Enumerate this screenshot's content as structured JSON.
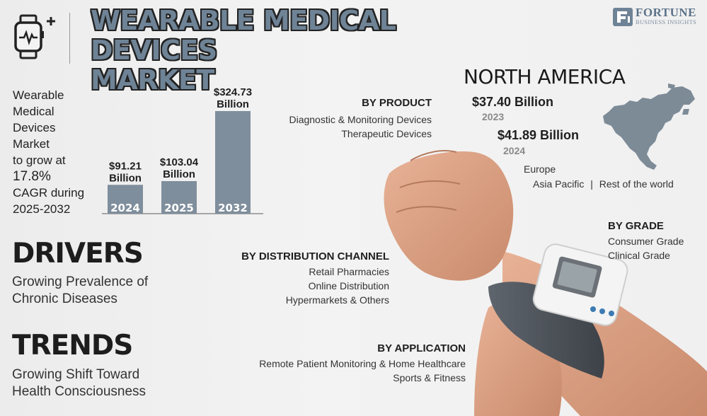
{
  "header": {
    "title_line1": "WEARABLE MEDICAL DEVICES",
    "title_line2": "MARKET",
    "brand_name": "FORTUNE",
    "brand_sub": "BUSINESS INSIGHTS",
    "logo_icon": "smartwatch-plus-icon"
  },
  "intro": {
    "l1": "Wearable",
    "l2": "Medical",
    "l3": "Devices",
    "l4": "Market",
    "l5": "to grow at",
    "cagr": "17.8%",
    "l7": "CAGR during",
    "period": "2025-2032"
  },
  "chart_data": {
    "type": "bar",
    "categories": [
      "2024",
      "2025",
      "2032"
    ],
    "values": [
      91.21,
      103.04,
      324.73
    ],
    "value_labels": [
      [
        "$91.21",
        "Billion"
      ],
      [
        "$103.04",
        "Billion"
      ],
      [
        "$324.73",
        "Billion"
      ]
    ],
    "bar_color": "#7f8e9c",
    "ylim": [
      0,
      324.73
    ]
  },
  "drivers": {
    "heading": "DRIVERS",
    "line1": "Growing Prevalence of",
    "line2": "Chronic Diseases"
  },
  "trends": {
    "heading": "TRENDS",
    "line1": "Growing Shift Toward",
    "line2": "Health Consciousness"
  },
  "by_product": {
    "title": "BY PRODUCT",
    "items": [
      "Diagnostic & Monitoring Devices",
      "Therapeutic Devices"
    ]
  },
  "by_distribution": {
    "title": "BY DISTRIBUTION CHANNEL",
    "items": [
      "Retail Pharmacies",
      "Online Distribution",
      "Hypermarkets & Others"
    ]
  },
  "by_application": {
    "title": "BY APPLICATION",
    "items": [
      "Remote Patient Monitoring & Home Healthcare",
      "Sports & Fitness"
    ]
  },
  "by_grade": {
    "title": "BY GRADE",
    "items": [
      "Consumer Grade",
      "Clinical Grade"
    ]
  },
  "region": {
    "title": "NORTH AMERICA",
    "value_2023": "$37.40 Billion",
    "year_2023": "2023",
    "value_2024": "$41.89 Billion",
    "year_2024": "2024",
    "europe": "Europe",
    "asia_pacific": "Asia Pacific",
    "separator": "|",
    "rest_of_world": "Rest of the world"
  },
  "colors": {
    "accent": "#6f8396",
    "bar": "#7f8e9c",
    "map": "#7d8b97"
  }
}
